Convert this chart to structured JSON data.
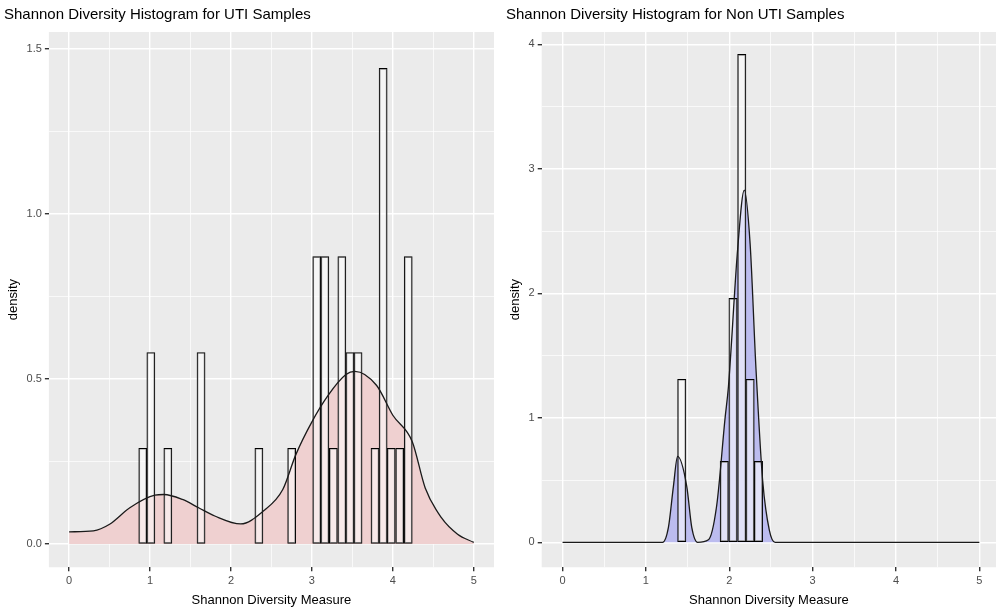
{
  "chart_data": [
    {
      "type": "histogram",
      "title": "Shannon Diversity Histogram for UTI Samples",
      "xlabel": "Shannon Diversity Measure",
      "ylabel": "density",
      "color": "#ffffff",
      "bins": [
        0.04,
        0.14,
        0.24,
        0.35,
        0.45,
        0.55,
        0.65,
        0.76,
        0.86,
        0.96,
        1.06,
        1.17,
        1.27,
        1.37,
        1.47,
        1.58,
        1.68,
        1.78,
        1.88,
        1.99,
        2.09,
        2.19,
        2.29,
        2.4,
        2.5,
        2.6,
        2.7,
        2.8,
        2.91,
        3.01,
        3.11,
        3.21,
        3.32,
        3.42,
        3.52,
        3.62,
        3.73,
        3.83,
        3.93,
        4.03,
        4.14,
        4.24,
        4.34,
        4.44,
        4.55,
        4.65,
        4.75,
        4.85,
        4.96
      ],
      "values": [
        0,
        0,
        0,
        0,
        0,
        0,
        0,
        0,
        0.29,
        0.58,
        0,
        0.29,
        0,
        0,
        0,
        0.58,
        0,
        0,
        0,
        0,
        0,
        0,
        0.29,
        0,
        0,
        0,
        0.29,
        0,
        0,
        0.87,
        0.87,
        0.29,
        0.87,
        0.58,
        0.58,
        0,
        0.29,
        1.44,
        0.29,
        0.29,
        0.87,
        0,
        0,
        0,
        0,
        0,
        0,
        0
      ],
      "series": [
        {
          "type": "area",
          "color": "#efd0d0",
          "x": [
            0,
            0.3,
            0.5,
            0.75,
            1.06,
            1.17,
            1.4,
            1.6,
            1.8,
            2.12,
            2.4,
            2.64,
            2.8,
            3.0,
            3.2,
            3.42,
            3.53,
            3.8,
            4.0,
            4.24,
            4.4,
            4.6,
            4.8,
            5.0
          ],
          "values": [
            0.037,
            0.04,
            0.06,
            0.11,
            0.148,
            0.15,
            0.135,
            0.11,
            0.085,
            0.061,
            0.1,
            0.165,
            0.27,
            0.37,
            0.45,
            0.513,
            0.523,
            0.48,
            0.39,
            0.31,
            0.17,
            0.08,
            0.03,
            0.005
          ]
        }
      ],
      "xlim": [
        -0.25,
        5.25
      ],
      "xticks": [
        0,
        {
          "value": 0.5,
          "label": null
        },
        1,
        {
          "value": 1.5,
          "label": null
        },
        2,
        {
          "value": 2.5,
          "label": null
        },
        3,
        {
          "value": 3.5,
          "label": null
        },
        4,
        {
          "value": 4.5,
          "label": null
        },
        5
      ],
      "ylim": [
        -0.07,
        1.55
      ],
      "yticks": [
        {
          "value": 0,
          "label": "0.0"
        },
        {
          "value": 0.25,
          "label": null
        },
        {
          "value": 0.5,
          "label": "0.5"
        },
        {
          "value": 0.75,
          "label": null
        },
        {
          "value": 1,
          "label": "1.0"
        },
        {
          "value": 1.25,
          "label": null
        },
        {
          "value": 1.5,
          "label": "1.5"
        }
      ],
      "grid": true,
      "legend": false
    },
    {
      "type": "histogram",
      "title": "Shannon Diversity Histogram for Non UTI Samples",
      "xlabel": "Shannon Diversity Measure",
      "ylabel": "density",
      "color": "#ffffff",
      "bins": [
        1.38,
        1.48,
        1.58,
        1.69,
        1.79,
        1.89,
        1.99,
        2.1,
        2.2,
        2.3,
        2.4
      ],
      "values": [
        1.31,
        0,
        0,
        0,
        0,
        0.65,
        1.96,
        3.92,
        1.31,
        0.65
      ],
      "series": [
        {
          "type": "area",
          "color": "#bcbcef",
          "x": [
            0,
            1.2,
            1.27,
            1.33,
            1.38,
            1.49,
            1.55,
            1.62,
            1.75,
            1.85,
            1.95,
            1.99,
            2.1,
            2.18,
            2.25,
            2.32,
            2.4,
            2.48,
            2.55,
            5.0
          ],
          "values": [
            0,
            0,
            0.12,
            0.45,
            0.69,
            0.45,
            0.12,
            0,
            0.02,
            0.3,
            1.0,
            1.25,
            2.35,
            2.83,
            2.4,
            1.4,
            0.5,
            0.1,
            0,
            0
          ]
        }
      ],
      "xlim": [
        -0.25,
        5.2
      ],
      "xticks": [
        0,
        {
          "value": 0.5,
          "label": null
        },
        1,
        {
          "value": 1.5,
          "label": null
        },
        2,
        {
          "value": 2.5,
          "label": null
        },
        3,
        {
          "value": 3.5,
          "label": null
        },
        4,
        {
          "value": 4.5,
          "label": null
        },
        5
      ],
      "ylim": [
        -0.2,
        4.1
      ],
      "yticks": [
        0,
        {
          "value": 0.5,
          "label": null
        },
        1,
        {
          "value": 1.5,
          "label": null
        },
        2,
        {
          "value": 2.5,
          "label": null
        },
        3,
        {
          "value": 3.5,
          "label": null
        },
        4
      ],
      "grid": true,
      "legend": false
    }
  ]
}
